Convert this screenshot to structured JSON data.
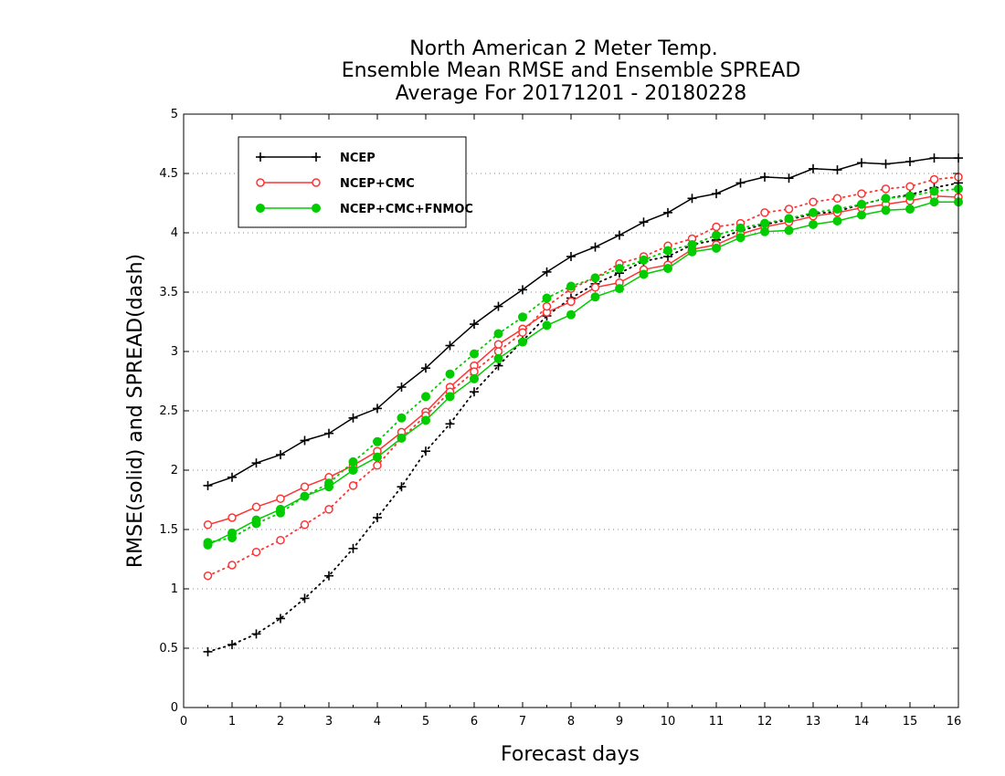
{
  "chart_data": {
    "type": "line",
    "title": [
      "North American 2 Meter Temp.",
      "Ensemble Mean RMSE and Ensemble SPREAD",
      "Average For 20171201 - 20180228"
    ],
    "xlabel": "Forecast days",
    "ylabel": "RMSE(solid) and SPREAD(dash)",
    "xlim": [
      0,
      16
    ],
    "ylim": [
      0,
      5
    ],
    "xticks": [
      "0",
      "1",
      "2",
      "3",
      "4",
      "5",
      "6",
      "7",
      "8",
      "9",
      "10",
      "11",
      "12",
      "13",
      "14",
      "15",
      "16"
    ],
    "yticks": [
      "0",
      "0.5",
      "1",
      "1.5",
      "2",
      "2.5",
      "3",
      "3.5",
      "4",
      "4.5",
      "5"
    ],
    "grid": "horizontal dotted",
    "legend_position": "top-left",
    "x": [
      0.5,
      1,
      1.5,
      2,
      2.5,
      3,
      3.5,
      4,
      4.5,
      5,
      5.5,
      6,
      6.5,
      7,
      7.5,
      8,
      8.5,
      9,
      9.5,
      10,
      10.5,
      11,
      11.5,
      12,
      12.5,
      13,
      13.5,
      14,
      14.5,
      15,
      15.5,
      16
    ],
    "series": [
      {
        "name": "NCEP",
        "color": "#000000",
        "marker": "plus",
        "style": "solid",
        "values": [
          1.87,
          1.94,
          2.06,
          2.13,
          2.25,
          2.31,
          2.44,
          2.52,
          2.7,
          2.86,
          3.05,
          3.23,
          3.38,
          3.52,
          3.67,
          3.8,
          3.88,
          3.98,
          4.09,
          4.17,
          4.29,
          4.33,
          4.42,
          4.47,
          4.46,
          4.54,
          4.53,
          4.59,
          4.58,
          4.6,
          4.63,
          4.63
        ]
      },
      {
        "name": "NCEP",
        "color": "#000000",
        "marker": "plus",
        "style": "dotted",
        "values": [
          0.47,
          0.53,
          0.62,
          0.75,
          0.92,
          1.11,
          1.34,
          1.6,
          1.86,
          2.16,
          2.39,
          2.66,
          2.88,
          3.09,
          3.3,
          3.45,
          3.57,
          3.66,
          3.76,
          3.8,
          3.9,
          3.94,
          4.02,
          4.07,
          4.11,
          4.16,
          4.18,
          4.24,
          4.29,
          4.32,
          4.38,
          4.42
        ]
      },
      {
        "name": "NCEP+CMC",
        "color": "#ff3333",
        "marker": "open-circle",
        "style": "solid",
        "values": [
          1.54,
          1.6,
          1.69,
          1.76,
          1.86,
          1.94,
          2.04,
          2.16,
          2.32,
          2.49,
          2.7,
          2.88,
          3.06,
          3.19,
          3.33,
          3.42,
          3.54,
          3.58,
          3.69,
          3.73,
          3.86,
          3.9,
          3.99,
          4.05,
          4.09,
          4.14,
          4.17,
          4.21,
          4.24,
          4.27,
          4.31,
          4.3
        ]
      },
      {
        "name": "NCEP+CMC",
        "color": "#ff3333",
        "marker": "open-circle",
        "style": "dotted",
        "values": [
          1.11,
          1.2,
          1.31,
          1.41,
          1.54,
          1.67,
          1.87,
          2.04,
          2.27,
          2.46,
          2.66,
          2.83,
          3.0,
          3.16,
          3.38,
          3.53,
          3.62,
          3.74,
          3.8,
          3.89,
          3.95,
          4.05,
          4.08,
          4.17,
          4.2,
          4.26,
          4.29,
          4.33,
          4.37,
          4.39,
          4.45,
          4.47
        ]
      },
      {
        "name": "NCEP+CMC+FNMOC",
        "color": "#00cc00",
        "marker": "filled-circle",
        "style": "solid",
        "values": [
          1.37,
          1.47,
          1.58,
          1.67,
          1.78,
          1.86,
          2.0,
          2.11,
          2.27,
          2.42,
          2.62,
          2.77,
          2.94,
          3.08,
          3.22,
          3.31,
          3.46,
          3.53,
          3.65,
          3.7,
          3.84,
          3.87,
          3.96,
          4.01,
          4.02,
          4.07,
          4.1,
          4.15,
          4.19,
          4.2,
          4.26,
          4.26
        ]
      },
      {
        "name": "NCEP+CMC+FNMOC",
        "color": "#00cc00",
        "marker": "filled-circle",
        "style": "dotted",
        "values": [
          1.39,
          1.43,
          1.55,
          1.64,
          1.78,
          1.89,
          2.07,
          2.24,
          2.44,
          2.62,
          2.81,
          2.98,
          3.15,
          3.29,
          3.45,
          3.55,
          3.62,
          3.7,
          3.77,
          3.85,
          3.9,
          3.98,
          4.04,
          4.08,
          4.12,
          4.17,
          4.2,
          4.24,
          4.29,
          4.31,
          4.35,
          4.37
        ]
      }
    ],
    "legend": [
      {
        "label": "NCEP",
        "color": "#000000",
        "marker": "plus"
      },
      {
        "label": "NCEP+CMC",
        "color": "#ff3333",
        "marker": "open-circle"
      },
      {
        "label": "NCEP+CMC+FNMOC",
        "color": "#00cc00",
        "marker": "filled-circle"
      }
    ]
  }
}
